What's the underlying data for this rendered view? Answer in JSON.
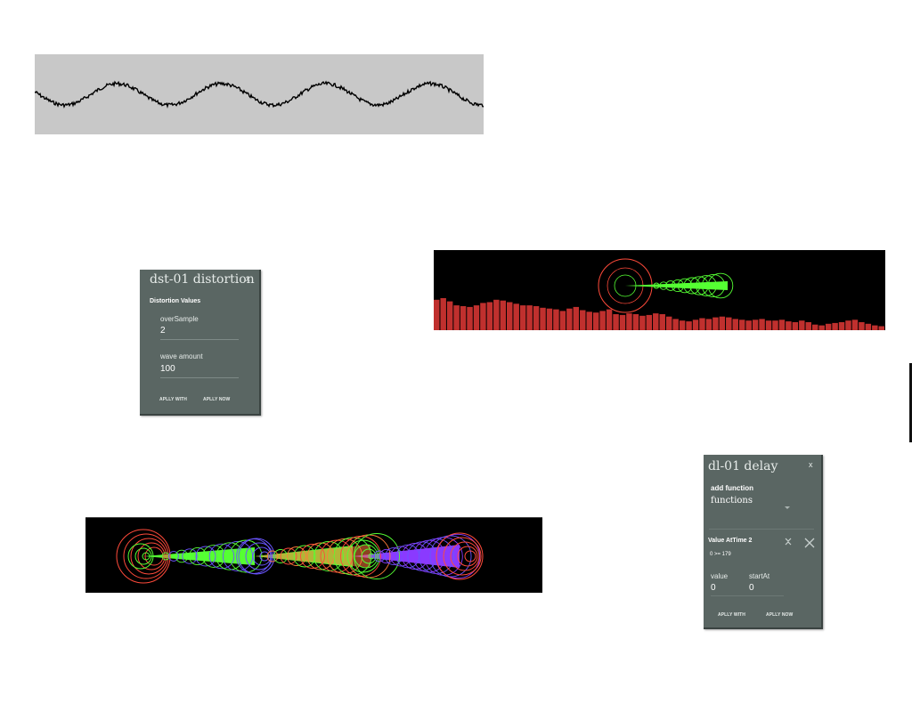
{
  "distortion_panel": {
    "title": "dst-01 distortion",
    "close_label": "x",
    "section_label": "Distortion Values",
    "fields": [
      {
        "label": "overSample",
        "value": "2"
      },
      {
        "label": "wave amount",
        "value": "100"
      }
    ],
    "buttons": {
      "apply_with": "APLLY WITH",
      "apply_now": "APLLY NOW"
    }
  },
  "delay_panel": {
    "title": "dl-01 delay",
    "close_label": "x",
    "add_function_label": "add function",
    "functions_select": "functions",
    "function_entry": {
      "title": "Value AtTime 2",
      "condition": "0 >= 179",
      "fields": [
        {
          "label": "value",
          "value": "0"
        },
        {
          "label": "startAt",
          "value": "0"
        }
      ]
    },
    "buttons": {
      "apply_with": "APLLY WITH",
      "apply_now": "APLLY NOW"
    }
  },
  "visualizers": {
    "waveform": {
      "background": "#c8c8c8",
      "line_color": "#000000",
      "cycles": 4.3
    },
    "spectrum": {
      "background": "#000000",
      "bar_color": "#c0302e",
      "bar_levels": [
        0.38,
        0.4,
        0.36,
        0.31,
        0.3,
        0.29,
        0.31,
        0.34,
        0.35,
        0.38,
        0.37,
        0.35,
        0.33,
        0.31,
        0.31,
        0.3,
        0.28,
        0.27,
        0.26,
        0.24,
        0.27,
        0.29,
        0.25,
        0.23,
        0.22,
        0.24,
        0.26,
        0.2,
        0.19,
        0.21,
        0.2,
        0.18,
        0.19,
        0.21,
        0.2,
        0.17,
        0.14,
        0.12,
        0.11,
        0.13,
        0.15,
        0.14,
        0.16,
        0.17,
        0.16,
        0.14,
        0.13,
        0.12,
        0.13,
        0.14,
        0.12,
        0.12,
        0.13,
        0.11,
        0.1,
        0.12,
        0.1,
        0.07,
        0.06,
        0.08,
        0.09,
        0.1,
        0.12,
        0.13,
        0.1,
        0.08,
        0.06,
        0.05
      ]
    },
    "rings_colors": [
      "#ff4a3a",
      "#6a55ff",
      "#55ff33",
      "#ff7a3a",
      "#8a3aff"
    ]
  }
}
